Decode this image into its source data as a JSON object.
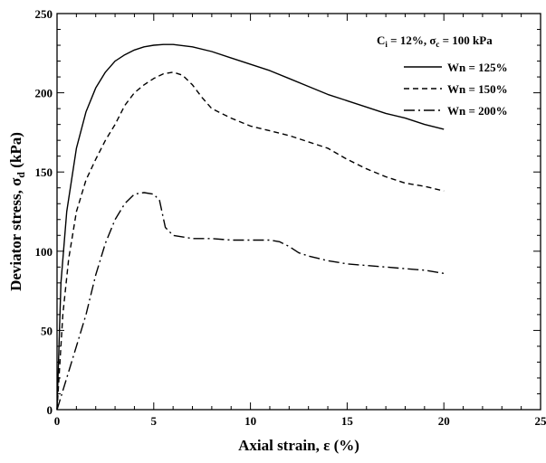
{
  "chart_data": {
    "type": "line",
    "xlabel": "Axial strain, ε (%)",
    "ylabel_main": "Deviator stress, σ",
    "ylabel_sub": "d",
    "ylabel_unit": " (kPa)",
    "xlim": [
      0,
      25
    ],
    "ylim": [
      0,
      250
    ],
    "xticks": [
      0,
      5,
      10,
      15,
      20,
      25
    ],
    "yticks": [
      0,
      50,
      100,
      150,
      200,
      250
    ],
    "grid": false,
    "legend_position": "top-right",
    "note": {
      "c": "C",
      "c_sub": "i",
      "c_val": " = 12%, σ",
      "s_sub": "c",
      "s_val": " = 100 kPa"
    },
    "series": [
      {
        "name": "Wn = 125%",
        "dash": "solid",
        "points": [
          [
            0,
            0
          ],
          [
            0.2,
            80
          ],
          [
            0.5,
            125
          ],
          [
            1,
            165
          ],
          [
            1.5,
            188
          ],
          [
            2,
            203
          ],
          [
            2.5,
            213
          ],
          [
            3,
            220
          ],
          [
            3.5,
            224
          ],
          [
            4,
            227
          ],
          [
            4.5,
            229
          ],
          [
            5,
            230
          ],
          [
            5.5,
            230.5
          ],
          [
            6,
            230.5
          ],
          [
            7,
            229
          ],
          [
            8,
            226
          ],
          [
            9,
            222
          ],
          [
            10,
            218
          ],
          [
            11,
            214
          ],
          [
            12,
            209
          ],
          [
            13,
            204
          ],
          [
            14,
            199
          ],
          [
            15,
            195
          ],
          [
            16,
            191
          ],
          [
            17,
            187
          ],
          [
            18,
            184
          ],
          [
            19,
            180
          ],
          [
            20,
            177
          ]
        ]
      },
      {
        "name": "Wn = 150%",
        "dash": "dashed",
        "points": [
          [
            0,
            0
          ],
          [
            0.3,
            60
          ],
          [
            0.6,
            95
          ],
          [
            1,
            125
          ],
          [
            1.5,
            145
          ],
          [
            2,
            158
          ],
          [
            2.5,
            170
          ],
          [
            3,
            180
          ],
          [
            3.5,
            192
          ],
          [
            4,
            200
          ],
          [
            4.5,
            205
          ],
          [
            5,
            209
          ],
          [
            5.5,
            212
          ],
          [
            6,
            213
          ],
          [
            6.5,
            211
          ],
          [
            7,
            205
          ],
          [
            7.5,
            197
          ],
          [
            8,
            190
          ],
          [
            9,
            184
          ],
          [
            10,
            179
          ],
          [
            11,
            176
          ],
          [
            12,
            173
          ],
          [
            13,
            169
          ],
          [
            14,
            165
          ],
          [
            15,
            158
          ],
          [
            16,
            152
          ],
          [
            17,
            147
          ],
          [
            18,
            143
          ],
          [
            19,
            141
          ],
          [
            20,
            138
          ]
        ]
      },
      {
        "name": "Wn = 200%",
        "dash": "dashdot",
        "points": [
          [
            0,
            0
          ],
          [
            0.5,
            20
          ],
          [
            1,
            40
          ],
          [
            1.5,
            60
          ],
          [
            2,
            85
          ],
          [
            2.5,
            105
          ],
          [
            3,
            120
          ],
          [
            3.5,
            130
          ],
          [
            4,
            136
          ],
          [
            4.5,
            137
          ],
          [
            5,
            136
          ],
          [
            5.3,
            132
          ],
          [
            5.6,
            115
          ],
          [
            6,
            110
          ],
          [
            7,
            108
          ],
          [
            8,
            108
          ],
          [
            9,
            107
          ],
          [
            10,
            107
          ],
          [
            11,
            107
          ],
          [
            11.5,
            106
          ],
          [
            12,
            103
          ],
          [
            12.5,
            99
          ],
          [
            13,
            97
          ],
          [
            14,
            94
          ],
          [
            15,
            92
          ],
          [
            16,
            91
          ],
          [
            17,
            90
          ],
          [
            18,
            89
          ],
          [
            19,
            88
          ],
          [
            20,
            86
          ]
        ]
      }
    ]
  }
}
